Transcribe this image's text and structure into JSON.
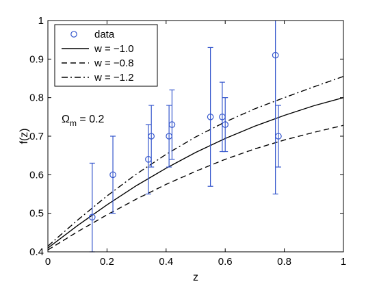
{
  "chart_data": {
    "type": "scatter",
    "title": "",
    "xlabel": "z",
    "ylabel": "f(z)",
    "xlim": [
      0,
      1
    ],
    "ylim": [
      0.4,
      1
    ],
    "xticks": [
      "0",
      "0.2",
      "0.4",
      "0.6",
      "0.8",
      "1"
    ],
    "yticks": [
      "0.4",
      "0.5",
      "0.6",
      "0.7",
      "0.8",
      "0.9",
      "1"
    ],
    "grid": false,
    "legend_position": "top-left",
    "annotation": {
      "symbol": "Ω",
      "subscript": "m",
      "text": " = 0.2"
    },
    "data": {
      "name": "data",
      "color": "#3355cc",
      "x": [
        0.15,
        0.22,
        0.34,
        0.35,
        0.41,
        0.42,
        0.55,
        0.59,
        0.6,
        0.77,
        0.78
      ],
      "y": [
        0.49,
        0.6,
        0.64,
        0.7,
        0.7,
        0.73,
        0.75,
        0.75,
        0.73,
        0.91,
        0.7
      ],
      "err": [
        0.14,
        0.1,
        0.09,
        0.08,
        0.08,
        0.09,
        0.18,
        0.09,
        0.07,
        0.36,
        0.08
      ]
    },
    "series": [
      {
        "name": "w = −1.0",
        "dash": "solid",
        "x": [
          0,
          0.1,
          0.2,
          0.3,
          0.4,
          0.5,
          0.6,
          0.7,
          0.8,
          0.9,
          1.0
        ],
        "y": [
          0.41,
          0.468,
          0.522,
          0.572,
          0.617,
          0.658,
          0.694,
          0.726,
          0.754,
          0.779,
          0.8
        ]
      },
      {
        "name": "w = −0.8",
        "dash": "dashed",
        "x": [
          0,
          0.1,
          0.2,
          0.3,
          0.4,
          0.5,
          0.6,
          0.7,
          0.8,
          0.9,
          1.0
        ],
        "y": [
          0.405,
          0.452,
          0.496,
          0.537,
          0.575,
          0.609,
          0.64,
          0.667,
          0.69,
          0.71,
          0.728
        ]
      },
      {
        "name": "w = −1.2",
        "dash": "dashdot",
        "x": [
          0,
          0.1,
          0.2,
          0.3,
          0.4,
          0.5,
          0.6,
          0.7,
          0.8,
          0.9,
          1.0
        ],
        "y": [
          0.415,
          0.482,
          0.545,
          0.602,
          0.653,
          0.698,
          0.737,
          0.771,
          0.8,
          0.828,
          0.855
        ]
      }
    ]
  }
}
